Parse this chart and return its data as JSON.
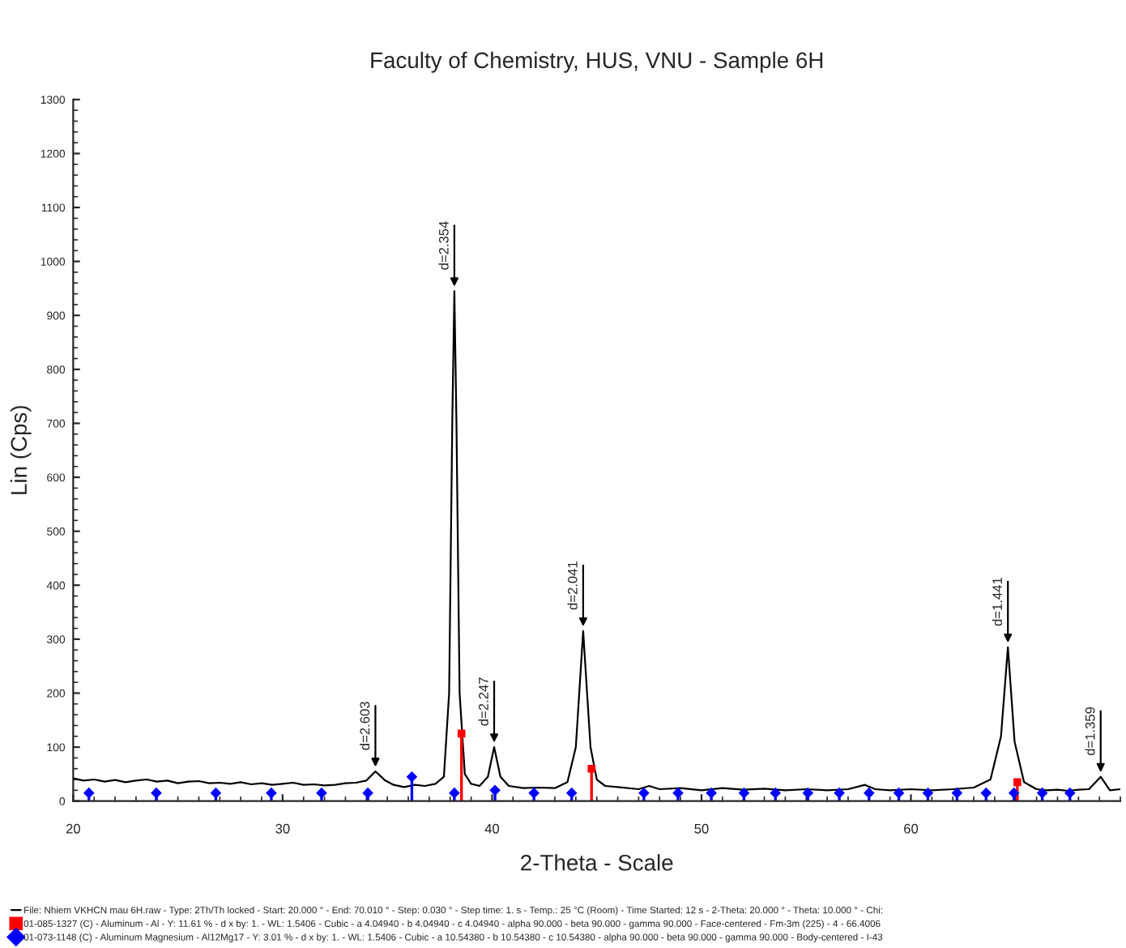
{
  "chart_data": {
    "type": "line",
    "title": "Faculty of Chemistry, HUS, VNU - Sample 6H",
    "xlabel": "2-Theta - Scale",
    "ylabel": "Lin (Cps)",
    "xlim": [
      20,
      70
    ],
    "xticks": [
      20,
      30,
      40,
      50,
      60
    ],
    "ylim": [
      0,
      1300
    ],
    "yticks": [
      0,
      100,
      200,
      300,
      400,
      500,
      600,
      700,
      800,
      900,
      1000,
      1100,
      1200,
      1300
    ],
    "grid": false,
    "legend": "bottom",
    "series": [
      {
        "name": "File: Nhiem VKHCN mau 6H.raw - Type: 2Th/Th locked - Start: 20.000 ° - End: 70.010 ° - Step: 0.030 ° - Step time: 1. s - Temp.: 25 °C (Room) - Time Started: 12 s - 2-Theta: 20.000 ° - Theta: 10.000 ° - Chi:",
        "color": "#000000",
        "marker": "none",
        "x": [
          20,
          20.5,
          21,
          21.5,
          22,
          22.5,
          23,
          23.5,
          24,
          24.5,
          25,
          25.5,
          26,
          26.5,
          27,
          27.5,
          28,
          28.5,
          29,
          29.5,
          30,
          30.5,
          31,
          31.5,
          32,
          32.5,
          33,
          33.5,
          34,
          34.43,
          34.9,
          35.3,
          35.8,
          36.3,
          36.8,
          37.3,
          37.7,
          37.95,
          38.1,
          38.2,
          38.3,
          38.45,
          38.7,
          39.0,
          39.4,
          39.8,
          40.1,
          40.4,
          40.8,
          41.5,
          42.2,
          43,
          43.6,
          44.0,
          44.35,
          44.7,
          45.0,
          45.4,
          46,
          47,
          47.5,
          48,
          49,
          50,
          51,
          52,
          53,
          54,
          55,
          56,
          57,
          57.8,
          58.3,
          59,
          60,
          61,
          62,
          63,
          63.8,
          64.3,
          64.63,
          64.95,
          65.4,
          66,
          66.5,
          67,
          67.5,
          68,
          68.5,
          69.06,
          69.5,
          70
        ],
        "values": [
          42,
          38,
          40,
          36,
          39,
          35,
          38,
          40,
          36,
          38,
          33,
          36,
          37,
          33,
          34,
          32,
          35,
          31,
          33,
          30,
          32,
          34,
          30,
          31,
          29,
          30,
          33,
          34,
          38,
          55,
          38,
          30,
          26,
          30,
          28,
          32,
          45,
          200,
          700,
          945,
          700,
          200,
          50,
          32,
          28,
          45,
          100,
          45,
          28,
          24,
          25,
          24,
          35,
          100,
          315,
          100,
          40,
          28,
          26,
          22,
          28,
          22,
          24,
          20,
          24,
          21,
          23,
          20,
          22,
          20,
          22,
          30,
          22,
          20,
          22,
          20,
          22,
          25,
          40,
          120,
          285,
          110,
          35,
          22,
          20,
          21,
          19,
          21,
          22,
          45,
          20,
          22
        ]
      },
      {
        "name": "01-085-1327 (C) - Aluminum - Al - Y: 11.61 % - d x by: 1. - WL: 1.5406 - Cubic - a 4.04940 - b 4.04940 - c 4.04940 - alpha 90.000 - beta 90.000 - gamma 90.000 - Face-centered - Fm-3m (225) - 4 - 66.4006",
        "type": "lollipop",
        "color": "#ff0000",
        "marker": "square",
        "x": [
          38.54,
          44.75,
          65.08
        ],
        "values": [
          125,
          60,
          35
        ]
      },
      {
        "name": "01-073-1148 (C) - Aluminum Magnesium - Al12Mg17 - Y: 3.01 % - d x by: 1. - WL: 1.5406 - Cubic - a 10.54380 - b 10.54380 - c 10.54380 - alpha 90.000 - beta 90.000 - gamma 90.000 - Body-centered - I-43",
        "type": "lollipop",
        "color": "#0000ff",
        "marker": "diamond",
        "x": [
          20.75,
          23.97,
          26.81,
          29.46,
          31.86,
          34.07,
          36.17,
          38.2,
          40.14,
          42.0,
          43.8,
          47.25,
          48.88,
          50.47,
          52.03,
          53.53,
          55.08,
          56.58,
          58.0,
          59.42,
          60.81,
          62.2,
          63.59,
          64.92,
          66.27,
          67.59
        ],
        "values": [
          15,
          15,
          15,
          15,
          15,
          15,
          45,
          15,
          20,
          15,
          15,
          15,
          15,
          15,
          15,
          15,
          15,
          15,
          15,
          15,
          15,
          15,
          15,
          15,
          15,
          15
        ]
      }
    ],
    "annotations": [
      {
        "text": "d=2.603",
        "x": 34.43,
        "y": 55
      },
      {
        "text": "d=2.354",
        "x": 38.2,
        "y": 945
      },
      {
        "text": "d=2.247",
        "x": 40.1,
        "y": 100
      },
      {
        "text": "d=2.041",
        "x": 44.35,
        "y": 315
      },
      {
        "text": "d=1.441",
        "x": 64.63,
        "y": 285
      },
      {
        "text": "d=1.359",
        "x": 69.06,
        "y": 45
      }
    ]
  }
}
